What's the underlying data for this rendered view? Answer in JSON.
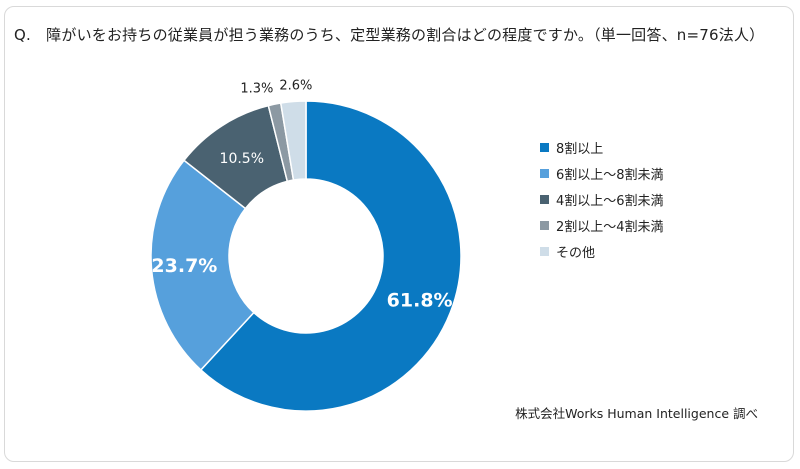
{
  "question": "Q.　障がいをお持ちの従業員が担う業務のうち、定型業務の割合はどの程度ですか。（単一回答、n=76法人）",
  "source": "株式会社Works Human Intelligence 調べ",
  "chart_data": {
    "type": "pie",
    "donut": true,
    "title": "",
    "legend_position": "right",
    "series": [
      {
        "name": "8割以上",
        "value": 61.8,
        "label": "61.8%",
        "color": "#0a79c2"
      },
      {
        "name": "6割以上〜8割未満",
        "value": 23.7,
        "label": "23.7%",
        "color": "#56a0dc"
      },
      {
        "name": "4割以上〜6割未満",
        "value": 10.5,
        "label": "10.5%",
        "color": "#4a6271"
      },
      {
        "name": "2割以上〜4割未満",
        "value": 1.3,
        "label": "1.3%",
        "color": "#8c99a3"
      },
      {
        "name": "その他",
        "value": 2.6,
        "label": "2.6%",
        "color": "#cfdde8"
      }
    ]
  }
}
